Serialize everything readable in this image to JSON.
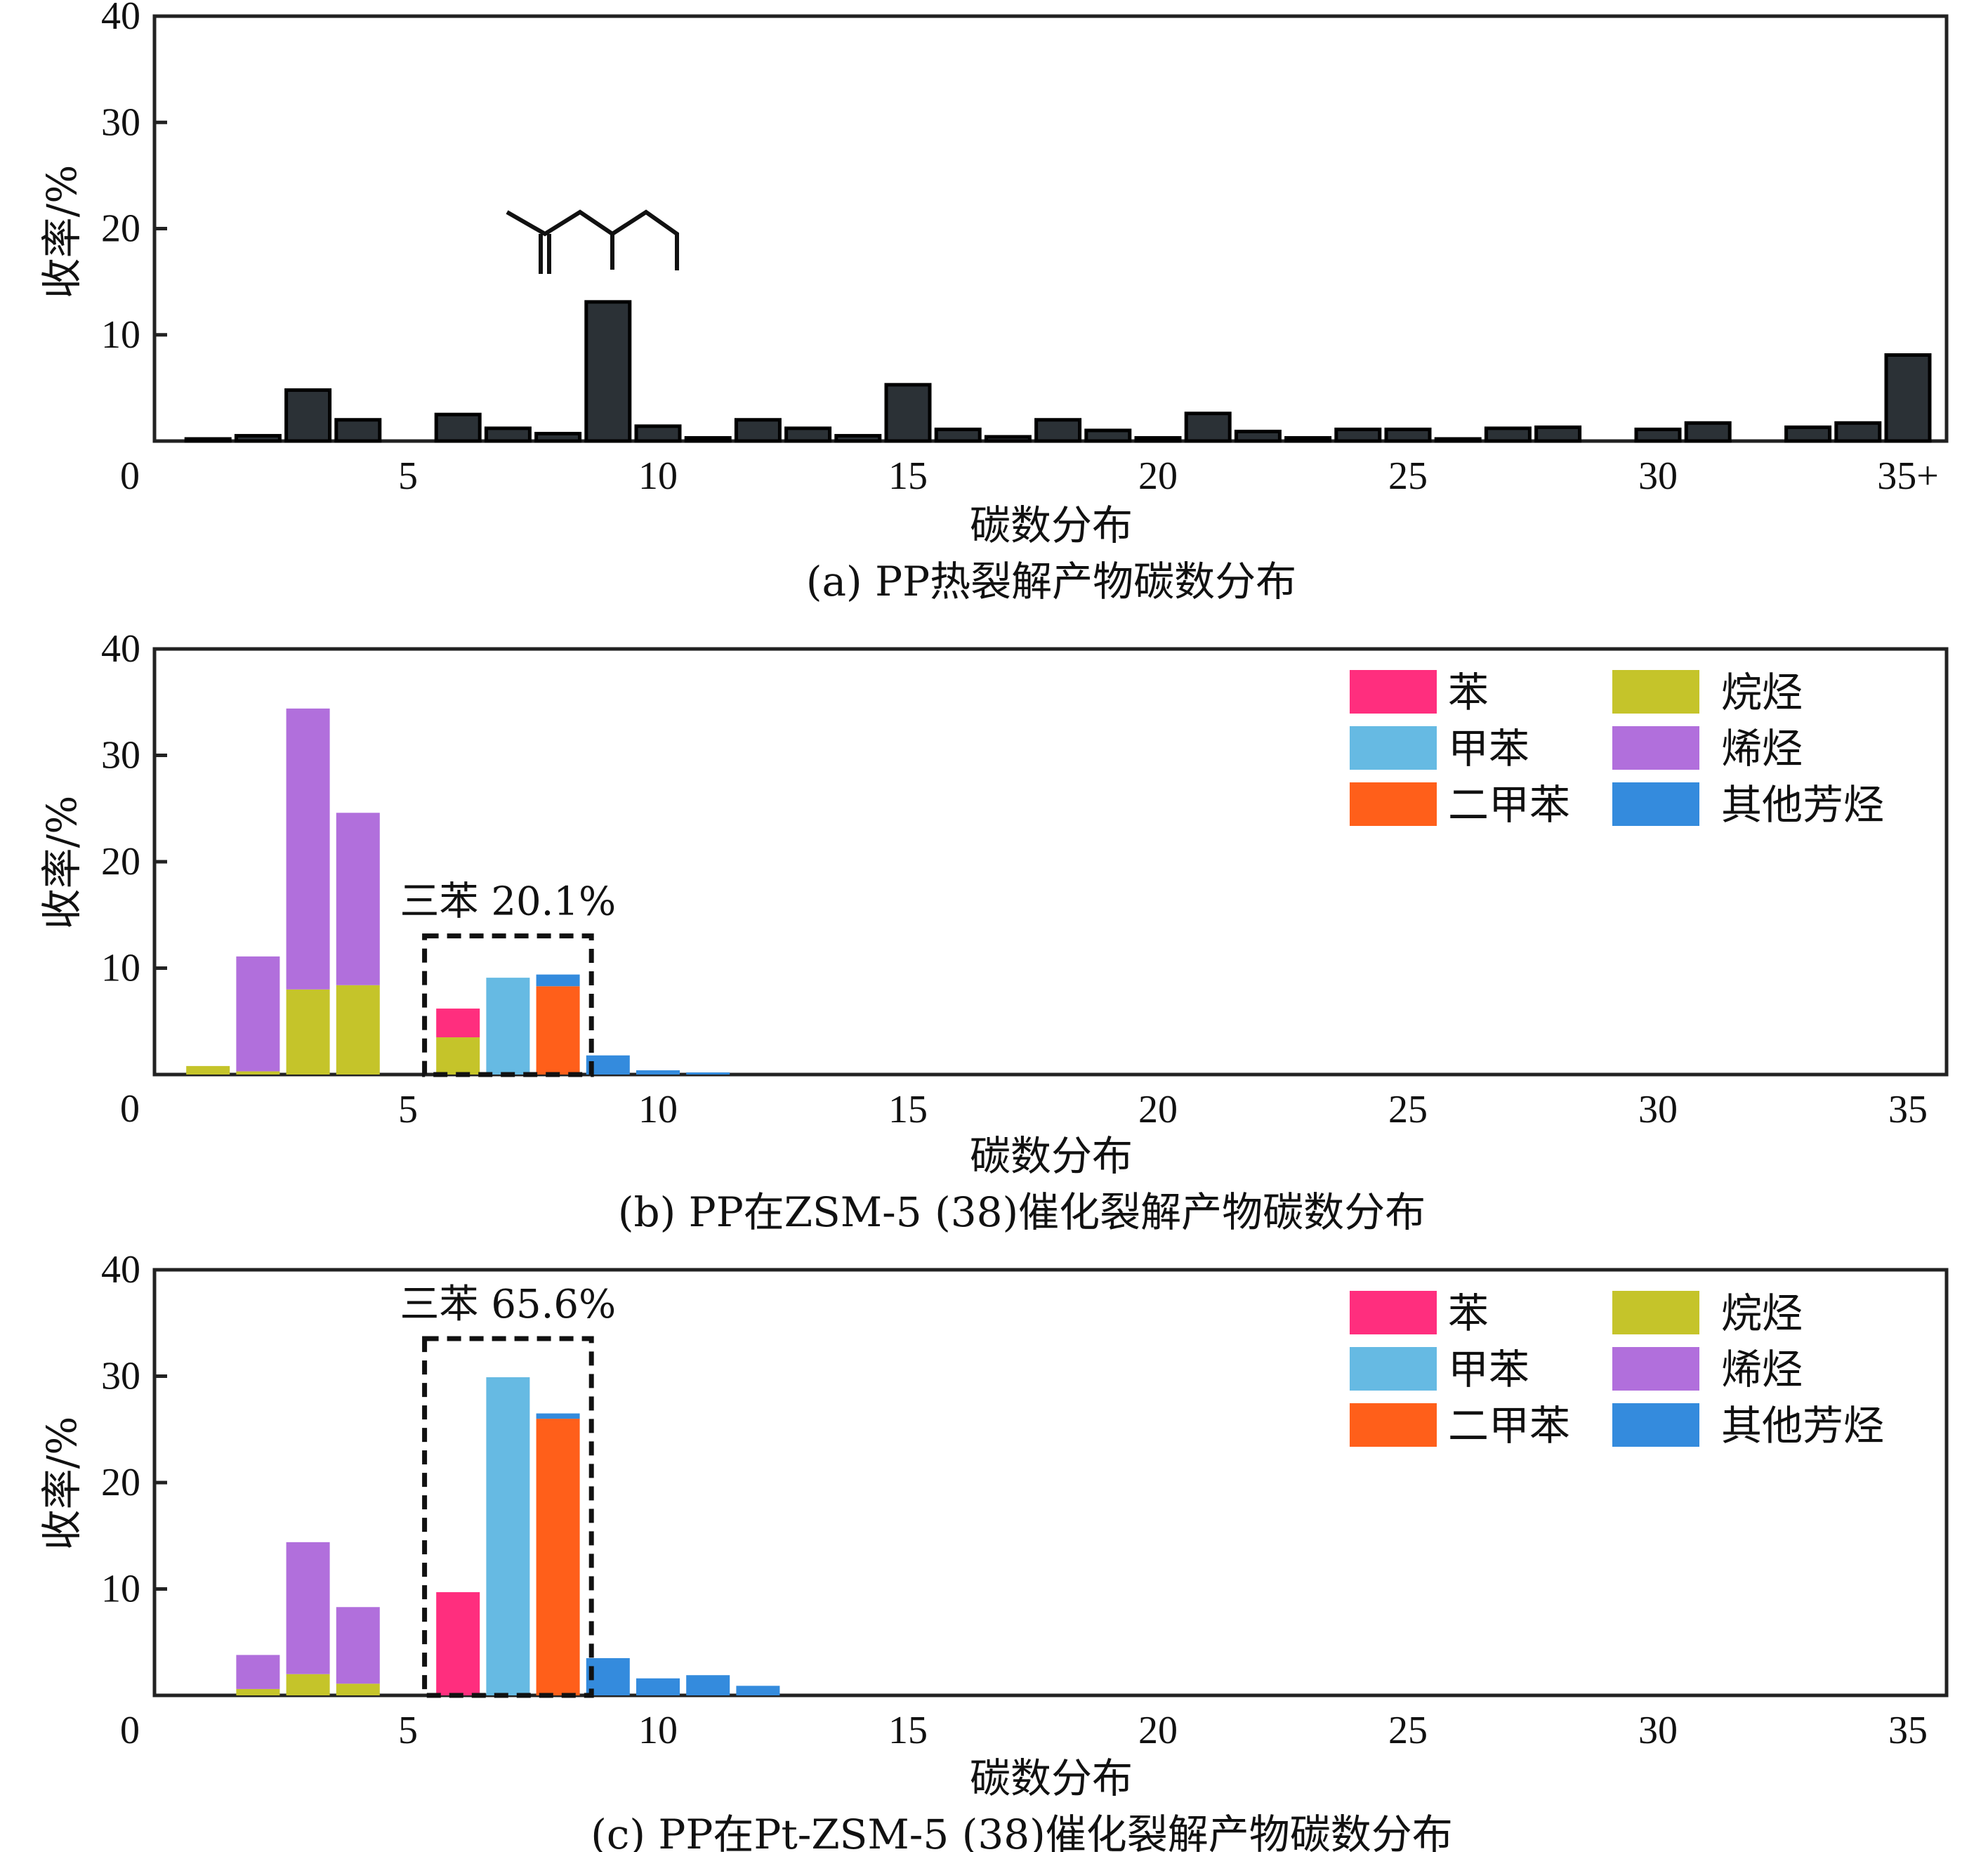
{
  "chart_data": [
    {
      "id": "a",
      "type": "bar",
      "caption": "(a) PP热裂解产物碳数分布",
      "xlabel": "碳数分布",
      "ylabel": "收率/%",
      "ylim": [
        0,
        40
      ],
      "yticks": [
        "0",
        "10",
        "20",
        "30",
        "40"
      ],
      "xticks": [
        "5",
        "10",
        "15",
        "20",
        "25",
        "30",
        "35+"
      ],
      "xtick_values": [
        5,
        10,
        15,
        20,
        25,
        30,
        35
      ],
      "x_zero_label": "0",
      "annotation_structure": "2,4-dimethyl-1-heptene skeletal structure (C9)",
      "bar_color": "#2B3136",
      "categories": [
        1,
        2,
        3,
        4,
        5,
        6,
        7,
        8,
        9,
        10,
        11,
        12,
        13,
        14,
        15,
        16,
        17,
        18,
        19,
        20,
        21,
        22,
        23,
        24,
        25,
        26,
        27,
        28,
        29,
        30,
        31,
        32,
        33,
        34,
        35
      ],
      "values": [
        0.2,
        0.5,
        4.8,
        2.0,
        0,
        2.5,
        1.2,
        0.7,
        13.1,
        1.4,
        0.3,
        2.0,
        1.2,
        0.5,
        5.3,
        1.1,
        0.4,
        2.0,
        1.0,
        0.3,
        2.6,
        0.9,
        0.3,
        1.1,
        1.1,
        0.2,
        1.2,
        1.3,
        0,
        1.1,
        1.7,
        0,
        1.3,
        1.7,
        8.1
      ]
    },
    {
      "id": "b",
      "type": "stacked-bar",
      "caption": "(b) PP在ZSM-5 (38)催化裂解产物碳数分布",
      "xlabel": "碳数分布",
      "ylabel": "收率/%",
      "ylim": [
        0,
        40
      ],
      "yticks": [
        "0",
        "10",
        "20",
        "30",
        "40"
      ],
      "xticks": [
        "5",
        "10",
        "15",
        "20",
        "25",
        "30",
        "35"
      ],
      "xtick_values": [
        5,
        10,
        15,
        20,
        25,
        30,
        35
      ],
      "x_zero_label": "0",
      "annotation": "三苯 20.1%",
      "annotation_box_range": [
        5.5,
        8.5
      ],
      "legend_position": "top-right",
      "categories": [
        1,
        2,
        3,
        4,
        5,
        6,
        7,
        8,
        9,
        10,
        11
      ],
      "series": [
        {
          "key": "alkane",
          "name": "烷烃",
          "color": "#C5C42A",
          "values": [
            0.8,
            0.3,
            8.0,
            8.4,
            0,
            3.5,
            0,
            0,
            0,
            0,
            0
          ]
        },
        {
          "key": "alkene",
          "name": "烯烃",
          "color": "#B16FDC",
          "values": [
            0,
            10.8,
            26.4,
            16.2,
            0,
            0,
            0,
            0,
            0,
            0,
            0
          ]
        },
        {
          "key": "benzene",
          "name": "苯",
          "color": "#FF2E7E",
          "values": [
            0,
            0,
            0,
            0,
            0,
            2.7,
            0,
            0,
            0,
            0,
            0
          ]
        },
        {
          "key": "toluene",
          "name": "甲苯",
          "color": "#66BAE3",
          "values": [
            0,
            0,
            0,
            0,
            0,
            0,
            9.1,
            0,
            0,
            0,
            0
          ]
        },
        {
          "key": "xylene",
          "name": "二甲苯",
          "color": "#FF5F1A",
          "values": [
            0,
            0,
            0,
            0,
            0,
            0,
            0,
            8.3,
            0,
            0,
            0
          ]
        },
        {
          "key": "other",
          "name": "其他芳烃",
          "color": "#348BDD",
          "values": [
            0,
            0,
            0,
            0,
            0,
            0,
            0,
            1.1,
            1.8,
            0.4,
            0.2
          ]
        }
      ]
    },
    {
      "id": "c",
      "type": "stacked-bar",
      "caption": "(c) PP在Pt-ZSM-5 (38)催化裂解产物碳数分布",
      "xlabel": "碳数分布",
      "ylabel": "收率/%",
      "ylim": [
        0,
        40
      ],
      "yticks": [
        "0",
        "10",
        "20",
        "30",
        "40"
      ],
      "xticks": [
        "5",
        "10",
        "15",
        "20",
        "25",
        "30",
        "35"
      ],
      "xtick_values": [
        5,
        10,
        15,
        20,
        25,
        30,
        35
      ],
      "x_zero_label": "0",
      "annotation": "三苯 65.6%",
      "annotation_box_range": [
        5.5,
        8.5
      ],
      "legend_position": "top-right",
      "categories": [
        1,
        2,
        3,
        4,
        5,
        6,
        7,
        8,
        9,
        10,
        11,
        12
      ],
      "series": [
        {
          "key": "alkane",
          "name": "烷烃",
          "color": "#C5C42A",
          "values": [
            0,
            0.6,
            2.0,
            1.1,
            0,
            0,
            0,
            0,
            0,
            0,
            0,
            0
          ]
        },
        {
          "key": "alkene",
          "name": "烯烃",
          "color": "#B16FDC",
          "values": [
            0,
            3.2,
            12.4,
            7.2,
            0,
            0,
            0,
            0,
            0,
            0,
            0,
            0
          ]
        },
        {
          "key": "benzene",
          "name": "苯",
          "color": "#FF2E7E",
          "values": [
            0,
            0,
            0,
            0,
            0,
            9.7,
            0,
            0,
            0,
            0,
            0,
            0
          ]
        },
        {
          "key": "toluene",
          "name": "甲苯",
          "color": "#66BAE3",
          "values": [
            0,
            0,
            0,
            0,
            0,
            0,
            29.9,
            0,
            0,
            0,
            0,
            0
          ]
        },
        {
          "key": "xylene",
          "name": "二甲苯",
          "color": "#FF5F1A",
          "values": [
            0,
            0,
            0,
            0,
            0,
            0,
            0,
            26.0,
            0,
            0,
            0,
            0
          ]
        },
        {
          "key": "other",
          "name": "其他芳烃",
          "color": "#348BDD",
          "values": [
            0,
            0,
            0,
            0,
            0,
            0,
            0,
            0.5,
            3.5,
            1.6,
            1.9,
            0.9
          ]
        }
      ]
    }
  ],
  "legend": {
    "items": [
      {
        "key": "benzene",
        "label": "苯",
        "color": "#FF2E7E"
      },
      {
        "key": "toluene",
        "label": "甲苯",
        "color": "#66BAE3"
      },
      {
        "key": "xylene",
        "label": "二甲苯",
        "color": "#FF5F1A"
      },
      {
        "key": "alkane",
        "label": "烷烃",
        "color": "#C5C42A"
      },
      {
        "key": "alkene",
        "label": "烯烃",
        "color": "#B16FDC"
      },
      {
        "key": "other",
        "label": "其他芳烃",
        "color": "#348BDD"
      }
    ]
  }
}
